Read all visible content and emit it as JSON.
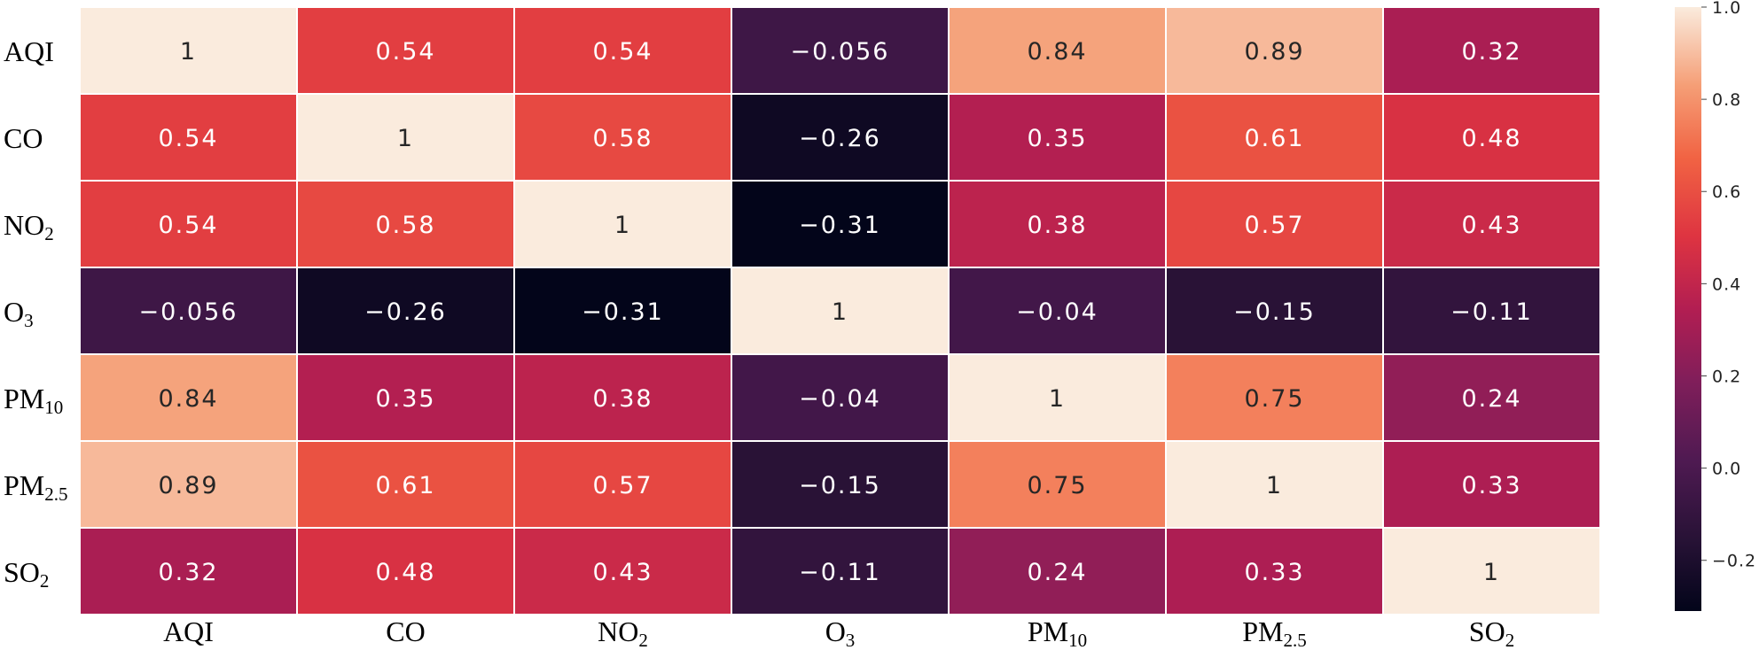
{
  "chart_data": {
    "type": "heatmap",
    "title": "",
    "xlabel": "",
    "ylabel": "",
    "row_labels": [
      {
        "base": "AQI",
        "sub": ""
      },
      {
        "base": "CO",
        "sub": ""
      },
      {
        "base": "NO",
        "sub": "2"
      },
      {
        "base": "O",
        "sub": "3"
      },
      {
        "base": "PM",
        "sub": "10"
      },
      {
        "base": "PM",
        "sub": "2.5"
      },
      {
        "base": "SO",
        "sub": "2"
      }
    ],
    "col_labels": [
      {
        "base": "AQI",
        "sub": ""
      },
      {
        "base": "CO",
        "sub": ""
      },
      {
        "base": "NO",
        "sub": "2"
      },
      {
        "base": "O",
        "sub": "3"
      },
      {
        "base": "PM",
        "sub": "10"
      },
      {
        "base": "PM",
        "sub": "2.5"
      },
      {
        "base": "SO",
        "sub": "2"
      }
    ],
    "values": [
      [
        1,
        0.54,
        0.54,
        -0.056,
        0.84,
        0.89,
        0.32
      ],
      [
        0.54,
        1,
        0.58,
        -0.26,
        0.35,
        0.61,
        0.48
      ],
      [
        0.54,
        0.58,
        1,
        -0.31,
        0.38,
        0.57,
        0.43
      ],
      [
        -0.056,
        -0.26,
        -0.31,
        1,
        -0.04,
        -0.15,
        -0.11
      ],
      [
        0.84,
        0.35,
        0.38,
        -0.04,
        1,
        0.75,
        0.24
      ],
      [
        0.89,
        0.61,
        0.57,
        -0.15,
        0.75,
        1,
        0.33
      ],
      [
        0.32,
        0.48,
        0.43,
        -0.11,
        0.24,
        0.33,
        1
      ]
    ],
    "value_labels": [
      [
        "1",
        "0.54",
        "0.54",
        "−0.056",
        "0.84",
        "0.89",
        "0.32"
      ],
      [
        "0.54",
        "1",
        "0.58",
        "−0.26",
        "0.35",
        "0.61",
        "0.48"
      ],
      [
        "0.54",
        "0.58",
        "1",
        "−0.31",
        "0.38",
        "0.57",
        "0.43"
      ],
      [
        "−0.056",
        "−0.26",
        "−0.31",
        "1",
        "−0.04",
        "−0.15",
        "−0.11"
      ],
      [
        "0.84",
        "0.35",
        "0.38",
        "−0.04",
        "1",
        "0.75",
        "0.24"
      ],
      [
        "0.89",
        "0.61",
        "0.57",
        "−0.15",
        "0.75",
        "1",
        "0.33"
      ],
      [
        "0.32",
        "0.48",
        "0.43",
        "−0.11",
        "0.24",
        "0.33",
        "1"
      ]
    ],
    "color_range": [
      -0.31,
      1.0
    ],
    "colormap": "rocket",
    "colorbar_ticks": [
      {
        "value": 1.0,
        "label": "1.0"
      },
      {
        "value": 0.8,
        "label": "0.8"
      },
      {
        "value": 0.6,
        "label": "0.6"
      },
      {
        "value": 0.4,
        "label": "0.4"
      },
      {
        "value": 0.2,
        "label": "0.2"
      },
      {
        "value": 0.0,
        "label": "0.0"
      },
      {
        "value": -0.2,
        "label": "−0.2"
      }
    ],
    "colorbar_position": "right",
    "grid_line_color": "#ffffff"
  }
}
